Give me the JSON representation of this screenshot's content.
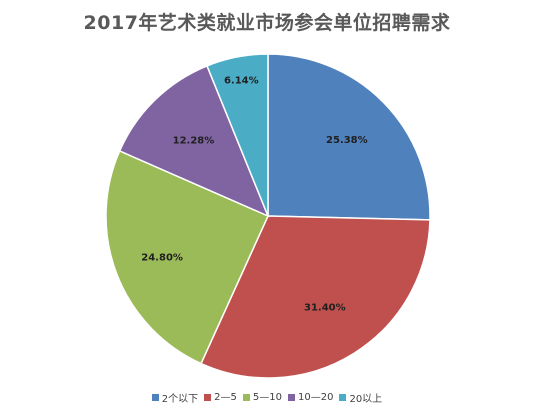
{
  "chart_data": {
    "type": "pie",
    "title": "2017年艺术类就业市场参会单位招聘需求",
    "categories": [
      "2个以下",
      "2—5",
      "5—10",
      "10—20",
      "20以上"
    ],
    "values": [
      25.38,
      31.4,
      24.8,
      12.28,
      6.14
    ],
    "labels": [
      "25.38%",
      "31.40%",
      "24.80%",
      "12.28%",
      "6.14%"
    ],
    "colors": [
      "#4f81bd",
      "#c0504d",
      "#9bbb59",
      "#8064a2",
      "#4bacc6"
    ],
    "legend_position": "bottom"
  }
}
